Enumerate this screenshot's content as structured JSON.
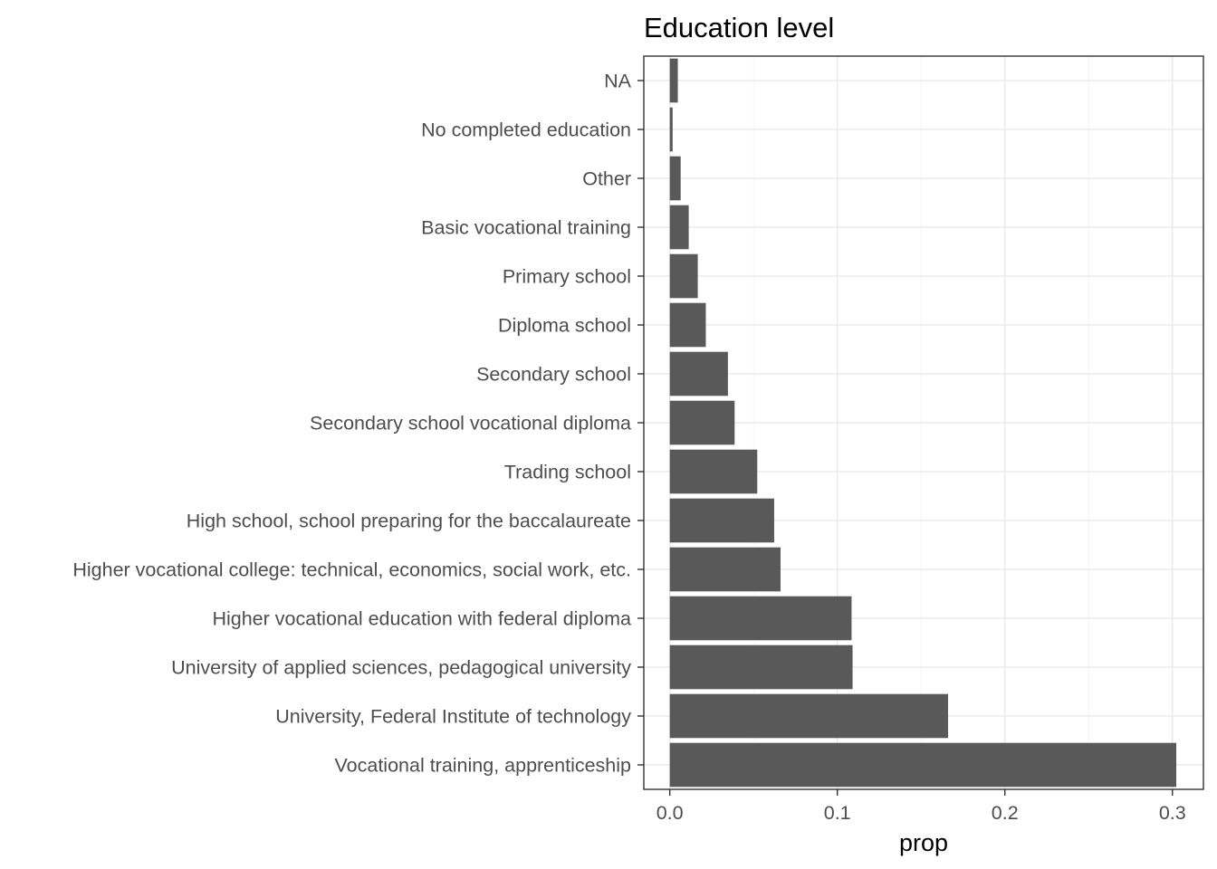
{
  "chart_data": {
    "type": "bar",
    "orientation": "horizontal",
    "title": "Education level",
    "xlabel": "prop",
    "ylabel": "",
    "xlim": [
      -0.0155,
      0.3185
    ],
    "xticks": [
      0.0,
      0.1,
      0.2,
      0.3
    ],
    "xtick_labels": [
      "0.0",
      "0.1",
      "0.2",
      "0.3"
    ],
    "categories": [
      "NA",
      "No completed education",
      "Other",
      "Basic vocational training",
      "Primary school",
      "Diploma school",
      "Secondary school",
      "Secondary school vocational diploma",
      "Trading school",
      "High school, school preparing for the baccalaureate",
      "Higher vocational college: technical, economics, social work, etc.",
      "Higher vocational education with federal diploma",
      "University of applied sciences, pedagogical university",
      "University, Federal Institute of technology",
      "Vocational training, apprenticeship"
    ],
    "values": [
      0.0048,
      0.0017,
      0.0065,
      0.0113,
      0.0167,
      0.0215,
      0.0347,
      0.0387,
      0.0522,
      0.0623,
      0.0661,
      0.1085,
      0.1091,
      0.1661,
      0.3023
    ],
    "bar_color": "#595959",
    "grid": true,
    "legend": "none"
  }
}
